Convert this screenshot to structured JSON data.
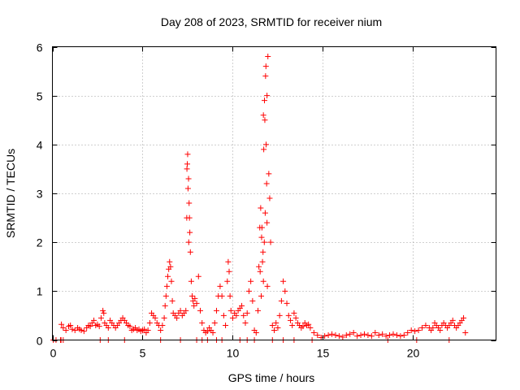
{
  "chart_data": {
    "type": "scatter",
    "title": "Day 208 of 2023, SRMTID for receiver nium",
    "xlabel": "GPS time / hours",
    "ylabel": "SRMTID / TECUs",
    "xlim": [
      0,
      24.6
    ],
    "ylim": [
      0,
      6
    ],
    "xticks": [
      0,
      5,
      10,
      15,
      20
    ],
    "xtick_labels": [
      "0",
      "5",
      "10",
      "15",
      "20"
    ],
    "yticks": [
      0,
      1,
      2,
      3,
      4,
      5,
      6
    ],
    "ytick_labels": [
      "0",
      "1",
      "2",
      "3",
      "4",
      "5",
      "6"
    ],
    "grid": true,
    "marker": "+",
    "color": "#ff0000",
    "series": [
      {
        "name": "SRMTID",
        "x": [
          0.05,
          0.2,
          0.45,
          0.5,
          0.6,
          0.75,
          0.9,
          1.0,
          1.1,
          1.25,
          1.4,
          1.5,
          1.6,
          1.75,
          1.9,
          2.0,
          2.1,
          2.2,
          2.3,
          2.4,
          2.5,
          2.6,
          2.7,
          2.8,
          2.85,
          2.9,
          3.0,
          3.1,
          3.2,
          3.3,
          3.4,
          3.5,
          3.6,
          3.7,
          3.8,
          3.9,
          4.0,
          4.1,
          4.2,
          4.3,
          4.4,
          4.5,
          4.6,
          4.7,
          4.8,
          4.9,
          5.0,
          5.1,
          5.2,
          5.3,
          5.4,
          5.5,
          5.6,
          5.7,
          5.8,
          5.9,
          6.0,
          6.1,
          6.2,
          6.25,
          6.3,
          6.35,
          6.4,
          6.45,
          6.5,
          6.55,
          6.6,
          6.65,
          6.7,
          6.8,
          6.9,
          7.0,
          7.1,
          7.2,
          7.3,
          7.4,
          7.45,
          7.5,
          7.55,
          7.6,
          7.65,
          7.7,
          7.75,
          7.8,
          7.85,
          7.9,
          8.0,
          8.1,
          8.2,
          8.3,
          8.4,
          8.5,
          8.6,
          8.7,
          8.8,
          8.9,
          9.0,
          9.1,
          9.2,
          9.3,
          9.4,
          9.5,
          9.6,
          9.7,
          9.75,
          9.8,
          9.85,
          9.9,
          10.0,
          10.1,
          10.2,
          10.3,
          10.4,
          10.5,
          10.6,
          10.7,
          10.8,
          10.9,
          11.0,
          11.1,
          11.2,
          11.3,
          11.4,
          11.45,
          11.5,
          11.55,
          11.6,
          11.65,
          11.7,
          11.75,
          11.8,
          11.85,
          11.9,
          11.95,
          12.0,
          12.05,
          12.1,
          12.2,
          12.3,
          12.4,
          12.5,
          12.6,
          12.7,
          12.8,
          12.9,
          13.0,
          13.1,
          13.2,
          13.3,
          13.4,
          13.5,
          13.6,
          13.7,
          13.8,
          13.9,
          14.0,
          14.1,
          14.2,
          14.3,
          14.5,
          14.7,
          14.9,
          15.1,
          15.3,
          15.5,
          15.7,
          15.9,
          16.1,
          16.3,
          16.5,
          16.7,
          16.9,
          17.1,
          17.3,
          17.5,
          17.7,
          17.9,
          18.1,
          18.3,
          18.5,
          18.7,
          18.9,
          19.1,
          19.3,
          19.5,
          19.7,
          19.9,
          20.1,
          20.3,
          20.5,
          20.7,
          20.9,
          21.0,
          21.1,
          21.2,
          21.3,
          21.4,
          21.5,
          21.6,
          21.7,
          21.8,
          21.9,
          22.0,
          22.1,
          22.2,
          22.3,
          22.4,
          22.5,
          22.6,
          22.7,
          22.8,
          22.9,
          0.48,
          0.6,
          2.65,
          3.1,
          4.0,
          6.0,
          7.1,
          8.0,
          8.3,
          8.6,
          9.1,
          9.4,
          10.4,
          10.8,
          11.2,
          12.2,
          12.8,
          13.4,
          14.4,
          18.6,
          20.2,
          22.0,
          11.52,
          11.58,
          11.62,
          11.68,
          11.72,
          11.78,
          11.82,
          11.88,
          11.92,
          11.76,
          11.84,
          11.7,
          11.9,
          7.48,
          7.52,
          7.58,
          7.62,
          7.46,
          7.56
        ],
        "y": [
          0.0,
          0.0,
          0.0,
          0.32,
          0.25,
          0.2,
          0.28,
          0.3,
          0.22,
          0.2,
          0.25,
          0.22,
          0.2,
          0.18,
          0.25,
          0.3,
          0.28,
          0.35,
          0.4,
          0.3,
          0.32,
          0.28,
          0.45,
          0.6,
          0.55,
          0.35,
          0.3,
          0.25,
          0.4,
          0.35,
          0.3,
          0.25,
          0.3,
          0.35,
          0.4,
          0.45,
          0.4,
          0.35,
          0.3,
          0.28,
          0.2,
          0.22,
          0.25,
          0.2,
          0.22,
          0.18,
          0.2,
          0.22,
          0.15,
          0.2,
          0.35,
          0.55,
          0.5,
          0.45,
          0.35,
          0.3,
          0.2,
          0.3,
          0.45,
          0.7,
          0.9,
          1.1,
          1.3,
          1.45,
          1.6,
          1.5,
          1.2,
          0.8,
          0.55,
          0.5,
          0.45,
          0.55,
          0.6,
          0.5,
          0.55,
          0.6,
          2.5,
          3.8,
          3.3,
          2.5,
          1.8,
          1.2,
          0.9,
          0.8,
          0.7,
          0.85,
          0.75,
          1.3,
          0.6,
          0.35,
          0.2,
          0.15,
          0.18,
          0.25,
          0.2,
          0.15,
          0.35,
          0.6,
          0.9,
          1.1,
          0.9,
          0.5,
          0.3,
          1.2,
          1.6,
          1.4,
          0.9,
          0.6,
          0.45,
          0.55,
          0.5,
          0.6,
          0.65,
          0.7,
          0.5,
          0.35,
          0.55,
          1.0,
          1.2,
          0.8,
          0.2,
          0.15,
          0.6,
          1.5,
          2.3,
          2.7,
          2.1,
          1.6,
          1.2,
          2.0,
          2.6,
          4.0,
          5.0,
          5.8,
          3.4,
          2.9,
          2.0,
          0.3,
          0.2,
          0.35,
          0.25,
          0.5,
          0.8,
          1.2,
          1.0,
          0.75,
          0.5,
          0.4,
          0.3,
          0.55,
          0.45,
          0.35,
          0.3,
          0.25,
          0.28,
          0.35,
          0.3,
          0.32,
          0.25,
          0.15,
          0.1,
          0.05,
          0.08,
          0.1,
          0.12,
          0.1,
          0.08,
          0.06,
          0.1,
          0.12,
          0.15,
          0.08,
          0.1,
          0.12,
          0.1,
          0.08,
          0.15,
          0.1,
          0.12,
          0.08,
          0.1,
          0.12,
          0.1,
          0.08,
          0.1,
          0.15,
          0.2,
          0.18,
          0.2,
          0.25,
          0.3,
          0.25,
          0.2,
          0.25,
          0.35,
          0.3,
          0.25,
          0.2,
          0.3,
          0.35,
          0.3,
          0.25,
          0.3,
          0.35,
          0.4,
          0.3,
          0.25,
          0.3,
          0.35,
          0.4,
          0.45,
          0.15,
          0.0,
          0.0,
          0.0,
          0.0,
          0.0,
          0.0,
          0.0,
          0.0,
          0.0,
          0.0,
          0.0,
          0.0,
          0.0,
          0.0,
          0.0,
          0.0,
          0.0,
          0.0,
          0.0,
          0.0,
          0.0,
          0.0,
          1.4,
          0.9,
          2.3,
          1.8,
          3.9,
          4.5,
          5.4,
          3.2,
          1.1,
          4.9,
          5.6,
          4.6,
          2.4,
          3.6,
          3.1,
          2.8,
          2.2,
          3.5,
          2.0
        ]
      }
    ]
  }
}
